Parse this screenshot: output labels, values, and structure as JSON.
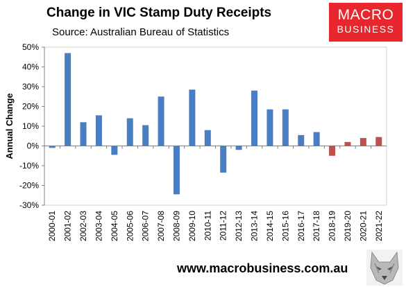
{
  "header": {
    "title": "Change in VIC Stamp Duty Receipts",
    "subtitle": "Source: Australian Bureau of Statistics"
  },
  "logo": {
    "line1": "MACRO",
    "line2": "BUSINESS",
    "bg_color": "#e8262d"
  },
  "footer": {
    "url": "www.macrobusiness.com.au",
    "icon": "wolf-icon"
  },
  "colors": {
    "actual": "#4a7ec2",
    "forecast": "#c0504d"
  },
  "chart_data": {
    "type": "bar",
    "title": "Change in VIC Stamp Duty Receipts",
    "ylabel": "Annual Change",
    "xlabel": "",
    "ylim": [
      -30,
      50
    ],
    "yticks": [
      "50%",
      "40%",
      "30%",
      "20%",
      "10%",
      "0%",
      "-10%",
      "-20%",
      "-30%"
    ],
    "grid": false,
    "categories": [
      "2000-01",
      "2001-02",
      "2002-03",
      "2003-04",
      "2004-05",
      "2005-06",
      "2006-07",
      "2007-08",
      "2008-09",
      "2009-10",
      "2010-11",
      "2011-12",
      "2012-13",
      "2013-14",
      "2014-15",
      "2015-16",
      "2016-17",
      "2017-18",
      "2018-19",
      "2019-20",
      "2020-21",
      "2021-22"
    ],
    "values": [
      -1,
      47,
      12,
      15.5,
      -4.5,
      14,
      10.5,
      25,
      -24.5,
      28.5,
      8,
      -13.5,
      -2,
      28,
      18.5,
      18.5,
      5.5,
      7,
      -5,
      2,
      4,
      4.5
    ],
    "forecast_from_index": 18
  }
}
